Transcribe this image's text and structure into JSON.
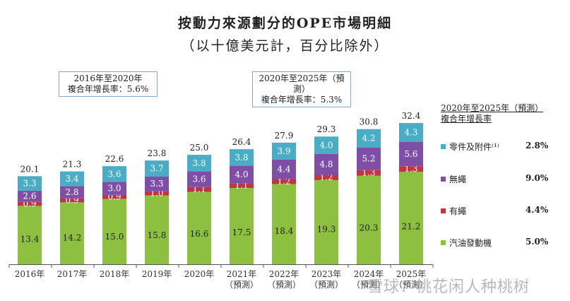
{
  "title": {
    "line1": "按動力來源劃分的OPE市場明細",
    "line2": "（以十億美元計，百分比除外）"
  },
  "cagr_boxes": [
    {
      "line1": "2016年至2020年",
      "line2": "複合年增長率：5.6%"
    },
    {
      "line1": "2020年至2025年（預測）",
      "line2": "複合年增長率：5.3%"
    }
  ],
  "legend": {
    "header_line1": "2020年至2025年（預測）",
    "header_line2": "複合年增長率",
    "items": [
      {
        "label": "零件及附件⁽¹⁾",
        "cagr": "2.8%",
        "color": "#4bacc6"
      },
      {
        "label": "無繩",
        "cagr": "9.0%",
        "color": "#7f4fa8"
      },
      {
        "label": "有繩",
        "cagr": "4.4%",
        "color": "#c0353f"
      },
      {
        "label": "汽油發動機",
        "cagr": "5.0%",
        "color": "#8dc040"
      }
    ]
  },
  "watermark": "雪球：桃花闲人种桃树",
  "chart_data": {
    "type": "bar",
    "stacked": true,
    "title": "按動力來源劃分的OPE市場明細",
    "subtitle": "（以十億美元計，百分比除外）",
    "xlabel": "",
    "ylabel": "",
    "grid": false,
    "legend_position": "right",
    "categories": [
      "2016年",
      "2017年",
      "2018年",
      "2019年",
      "2020年",
      "2021年",
      "2022年",
      "2023年",
      "2024年",
      "2025年"
    ],
    "category_sublabels": [
      "",
      "",
      "",
      "",
      "",
      "（預測）",
      "（預測）",
      "（預測）",
      "（預測）",
      "（預測）"
    ],
    "series": [
      {
        "name": "汽油發動機",
        "color": "#8dc040",
        "values": [
          13.4,
          14.2,
          15.0,
          15.8,
          16.6,
          17.5,
          18.4,
          19.3,
          20.3,
          21.2
        ]
      },
      {
        "name": "有繩",
        "color": "#c0353f",
        "values": [
          0.9,
          0.9,
          0.9,
          1.0,
          1.1,
          1.1,
          1.2,
          1.2,
          1.3,
          1.3
        ]
      },
      {
        "name": "無繩",
        "color": "#7f4fa8",
        "values": [
          2.6,
          2.8,
          3.0,
          3.3,
          3.6,
          4.0,
          4.4,
          4.8,
          5.2,
          5.6
        ]
      },
      {
        "name": "零件及附件",
        "color": "#4bacc6",
        "values": [
          3.3,
          3.4,
          3.6,
          3.7,
          3.8,
          3.8,
          3.9,
          4.0,
          4.2,
          4.3
        ]
      }
    ],
    "totals": [
      "20.1",
      "21.3",
      "22.6",
      "23.8",
      "25.0",
      "26.4",
      "27.9",
      "29.3",
      "30.8",
      "32.4"
    ],
    "ylim": [
      0,
      35
    ]
  }
}
